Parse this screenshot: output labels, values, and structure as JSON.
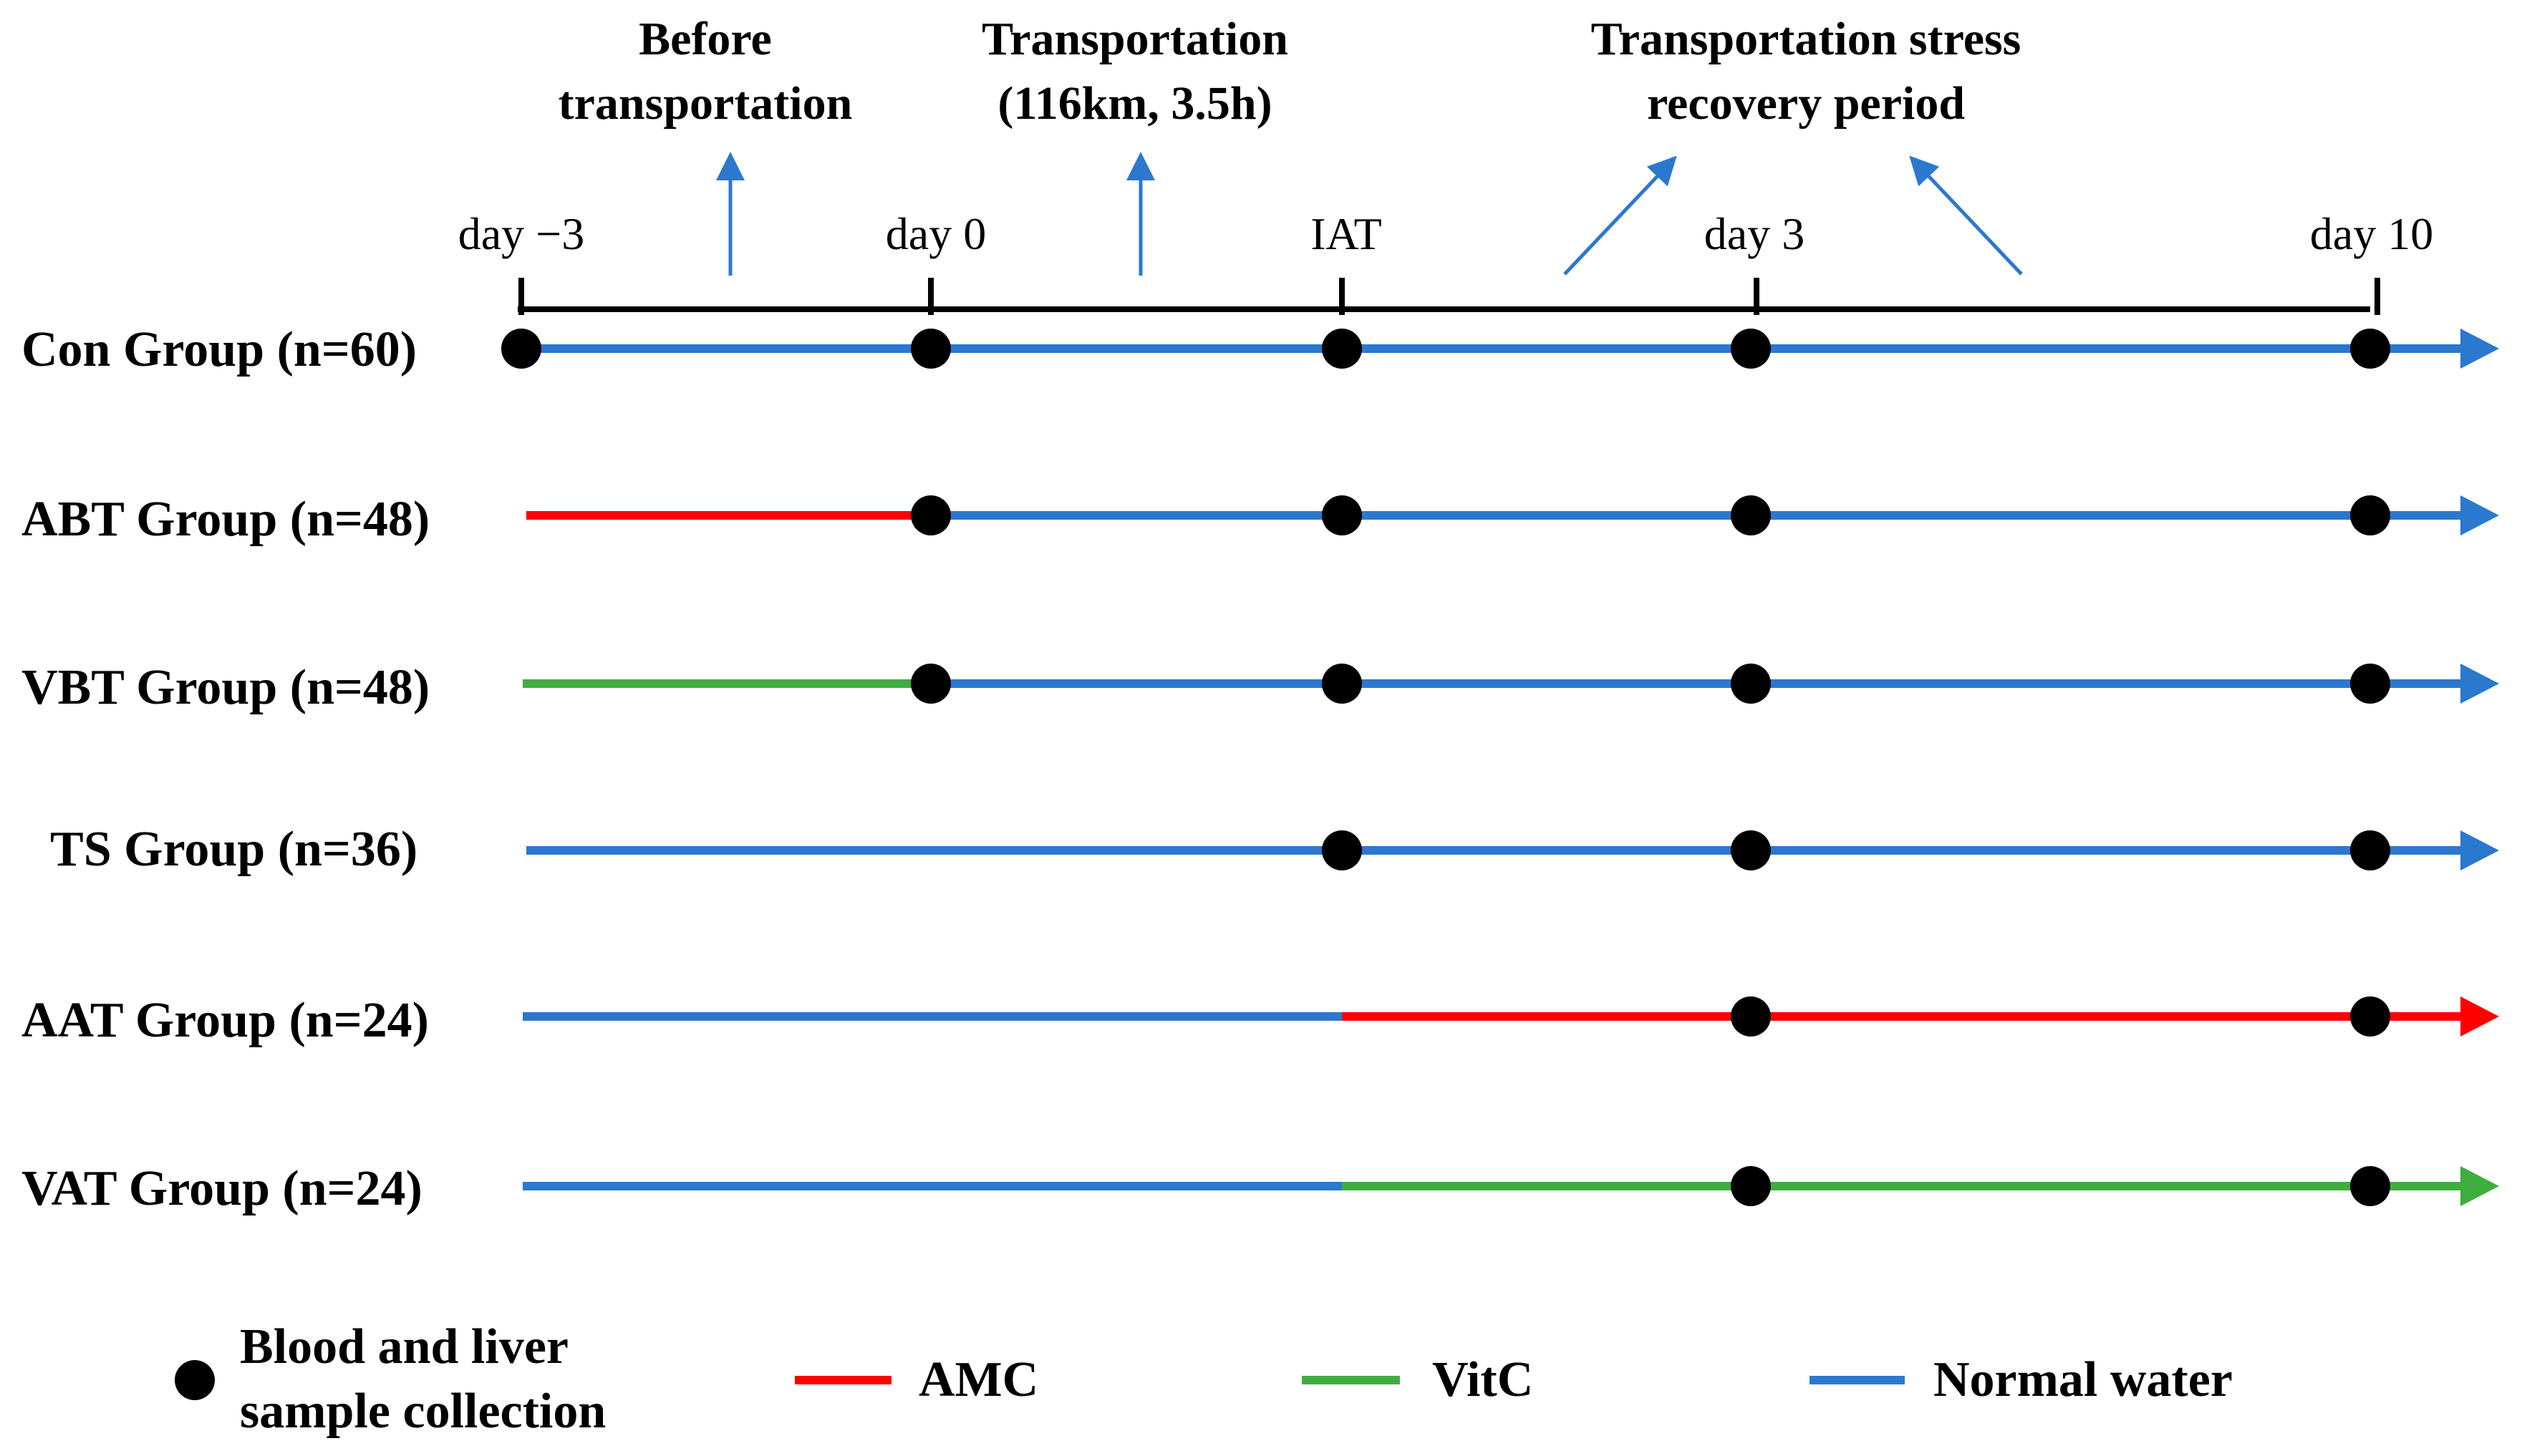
{
  "colors": {
    "normal_water": "#2b78cf",
    "amc": "#ff0000",
    "vitc": "#3fae3f",
    "axis": "#000000",
    "dot": "#000000"
  },
  "phases": [
    {
      "id": "before",
      "line1": "Before",
      "line2": "transportation"
    },
    {
      "id": "transport",
      "line1": "Transportation",
      "line2": "(116km, 3.5h)"
    },
    {
      "id": "recovery",
      "line1": "Transportation stress",
      "line2": "recovery period"
    }
  ],
  "timepoints": [
    "day −3",
    "day 0",
    "IAT",
    "day 3",
    "day 10"
  ],
  "groups": [
    {
      "name": "Con Group (n=60)",
      "samples": [
        "day −3",
        "day 0",
        "IAT",
        "day 3",
        "day 10"
      ],
      "segments": [
        {
          "from": "day −3",
          "to": "end",
          "treatment": "normal_water"
        }
      ]
    },
    {
      "name": "ABT Group (n=48)",
      "samples": [
        "day 0",
        "IAT",
        "day 3",
        "day 10"
      ],
      "segments": [
        {
          "from": "day −3",
          "to": "day 0",
          "treatment": "amc"
        },
        {
          "from": "day 0",
          "to": "end",
          "treatment": "normal_water"
        }
      ]
    },
    {
      "name": "VBT Group (n=48)",
      "samples": [
        "day 0",
        "IAT",
        "day 3",
        "day 10"
      ],
      "segments": [
        {
          "from": "day −3",
          "to": "day 0",
          "treatment": "vitc"
        },
        {
          "from": "day 0",
          "to": "end",
          "treatment": "normal_water"
        }
      ]
    },
    {
      "name": "TS Group (n=36)",
      "samples": [
        "IAT",
        "day 3",
        "day 10"
      ],
      "segments": [
        {
          "from": "day −3",
          "to": "end",
          "treatment": "normal_water"
        }
      ]
    },
    {
      "name": "AAT Group (n=24)",
      "samples": [
        "day 3",
        "day 10"
      ],
      "segments": [
        {
          "from": "day −3",
          "to": "IAT",
          "treatment": "normal_water"
        },
        {
          "from": "IAT",
          "to": "end",
          "treatment": "amc"
        }
      ]
    },
    {
      "name": "VAT Group (n=24)",
      "samples": [
        "day 3",
        "day 10"
      ],
      "segments": [
        {
          "from": "day −3",
          "to": "IAT",
          "treatment": "normal_water"
        },
        {
          "from": "IAT",
          "to": "end",
          "treatment": "vitc"
        }
      ]
    }
  ],
  "legend": {
    "sample": {
      "line1": "Blood and liver",
      "line2": "sample collection"
    },
    "amc": "AMC",
    "vitc": "VitC",
    "normal_water": "Normal water"
  }
}
